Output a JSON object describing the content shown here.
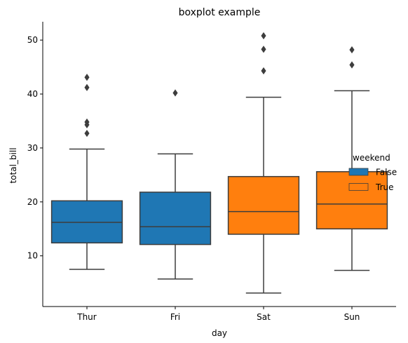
{
  "chart_data": {
    "type": "boxplot",
    "title": "boxplot example",
    "xlabel": "day",
    "ylabel": "total_bill",
    "categories": [
      "Thur",
      "Fri",
      "Sat",
      "Sun"
    ],
    "ylim": [
      0.6,
      53.4
    ],
    "yticks": [
      10,
      20,
      30,
      40,
      50
    ],
    "grid": false,
    "legend": {
      "title": "weekend",
      "placement": "right",
      "entries": [
        {
          "label": "False",
          "color": "#1f77b4"
        },
        {
          "label": "True",
          "color": "#ff7f0e"
        }
      ]
    },
    "boxes": [
      {
        "category": "Thur",
        "series": "False",
        "color": "#1f77b4",
        "whisker_low": 7.5,
        "q1": 12.4,
        "median": 16.2,
        "q3": 20.2,
        "whisker_high": 29.8,
        "outliers": [
          32.7,
          34.3,
          34.8,
          41.2,
          43.1
        ]
      },
      {
        "category": "Fri",
        "series": "False",
        "color": "#1f77b4",
        "whisker_low": 5.7,
        "q1": 12.1,
        "median": 15.4,
        "q3": 21.8,
        "whisker_high": 28.9,
        "outliers": [
          40.2
        ]
      },
      {
        "category": "Sat",
        "series": "True",
        "color": "#ff7f0e",
        "whisker_low": 3.1,
        "q1": 14.0,
        "median": 18.2,
        "q3": 24.7,
        "whisker_high": 39.4,
        "outliers": [
          44.3,
          48.3,
          50.8
        ]
      },
      {
        "category": "Sun",
        "series": "True",
        "color": "#ff7f0e",
        "whisker_low": 7.3,
        "q1": 15.0,
        "median": 19.6,
        "q3": 25.6,
        "whisker_high": 40.6,
        "outliers": [
          45.4,
          48.2
        ]
      }
    ],
    "edge_color": "#3d3d3d"
  }
}
